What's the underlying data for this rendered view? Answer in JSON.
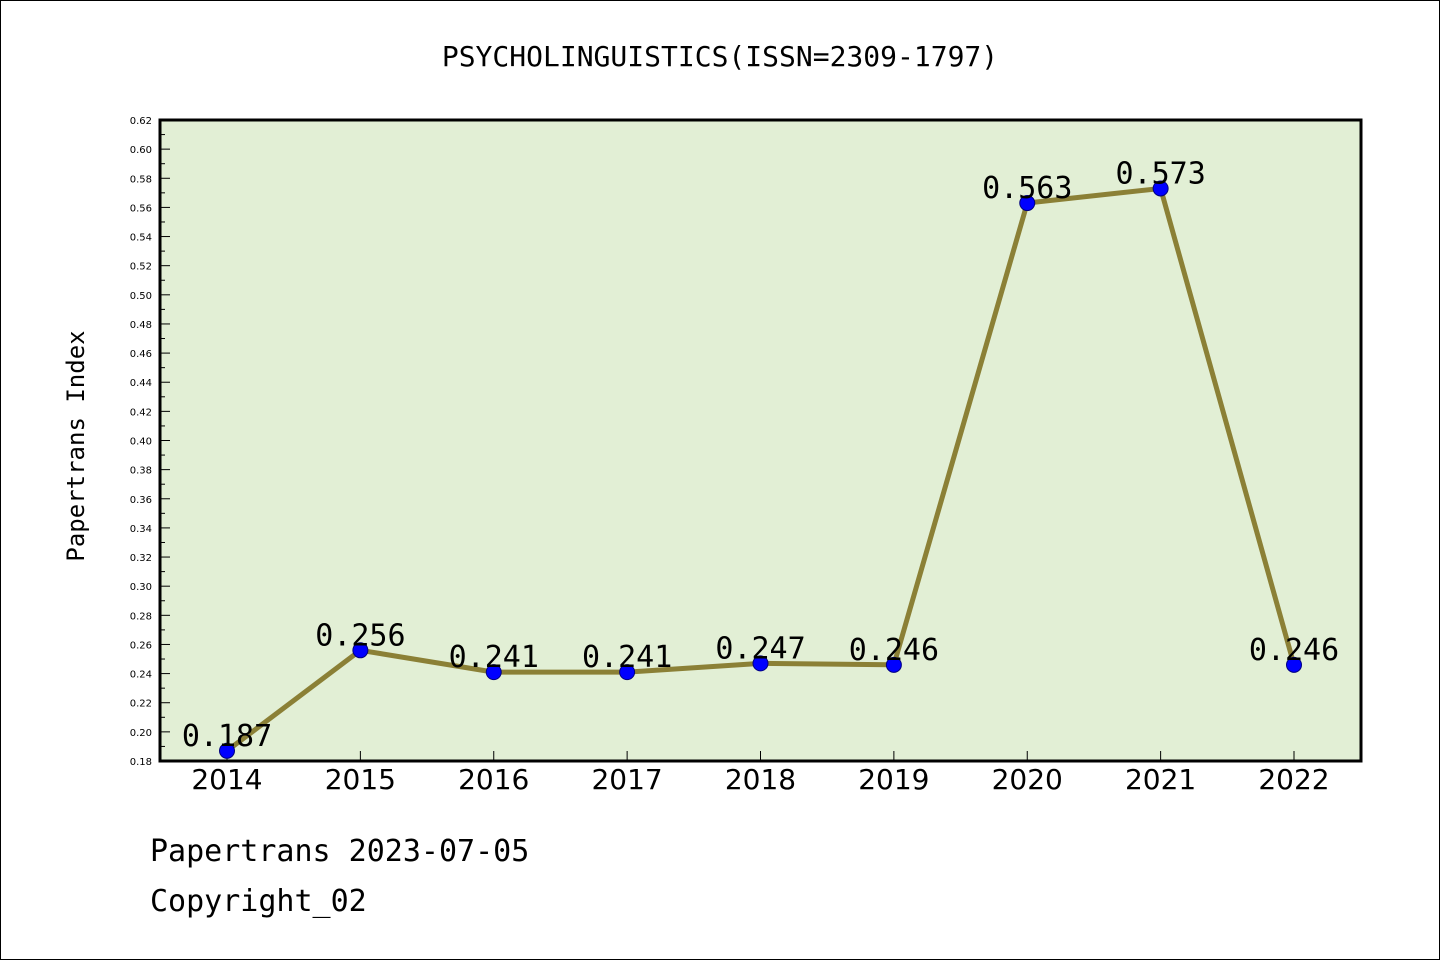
{
  "chart_data": {
    "type": "line",
    "title": "PSYCHOLINGUISTICS(ISSN=2309-1797)",
    "xlabel": "",
    "ylabel": "Papertrans Index",
    "categories": [
      "2014",
      "2015",
      "2016",
      "2017",
      "2018",
      "2019",
      "2020",
      "2021",
      "2022"
    ],
    "series": [
      {
        "values": [
          0.187,
          0.256,
          0.241,
          0.241,
          0.247,
          0.246,
          0.563,
          0.573,
          0.246
        ],
        "labels": [
          "0.187",
          "0.256",
          "0.241",
          "0.241",
          "0.247",
          "0.246",
          "0.563",
          "0.573",
          "0.246"
        ],
        "line_color": "#8b8036",
        "marker_color": "#0000ff"
      }
    ],
    "ylim": [
      0.18,
      0.62
    ],
    "yticks": [
      "0.18",
      "0.20",
      "0.22",
      "0.24",
      "0.26",
      "0.28",
      "0.30",
      "0.32",
      "0.34",
      "0.36",
      "0.38",
      "0.40",
      "0.42",
      "0.44",
      "0.46",
      "0.48",
      "0.50",
      "0.52",
      "0.54",
      "0.56",
      "0.58",
      "0.60",
      "0.62"
    ],
    "grid": false,
    "legend": "none",
    "plot_background": "#e2efd5"
  },
  "footer": {
    "date_line": "Papertrans 2023-07-05",
    "copyright_line": "Copyright_02"
  }
}
